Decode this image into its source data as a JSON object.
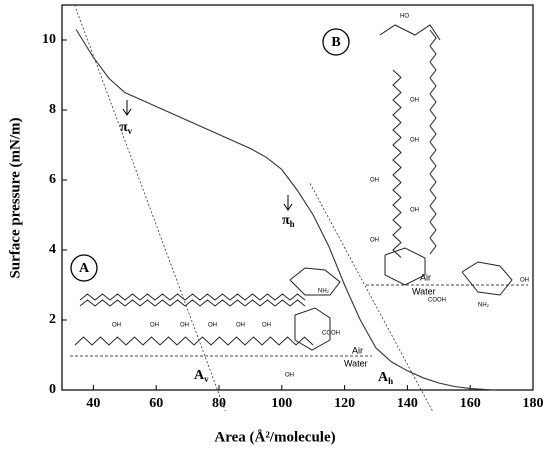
{
  "chart_data": {
    "type": "line",
    "xlabel": "Area (Å²/molecule)",
    "ylabel": "Surface pressure (mN/m)",
    "xlim": [
      30,
      180
    ],
    "ylim": [
      0,
      11
    ],
    "xticks": [
      40,
      60,
      80,
      100,
      120,
      140,
      160,
      180
    ],
    "yticks": [
      0,
      2,
      4,
      6,
      8,
      10
    ],
    "series": [
      {
        "color": "#333333",
        "dash": false,
        "x": [
          34.5,
          40,
          45,
          50,
          55,
          60,
          65,
          70,
          75,
          80,
          85,
          90,
          95,
          100,
          105,
          110,
          115,
          120,
          125,
          130,
          135,
          140,
          145,
          150,
          155,
          160,
          165,
          168
        ],
        "values": [
          10.3,
          9.5,
          8.9,
          8.5,
          8.3,
          8.1,
          7.9,
          7.7,
          7.5,
          7.3,
          7.1,
          6.9,
          6.65,
          6.3,
          5.7,
          5.0,
          4.1,
          3.0,
          2.0,
          1.2,
          0.8,
          0.55,
          0.35,
          0.2,
          0.1,
          0.04,
          0.01,
          0
        ]
      },
      {
        "color": "#333333",
        "dash": true,
        "x": [
          34,
          82
        ],
        "values": [
          11,
          -0.6
        ]
      },
      {
        "color": "#333333",
        "dash": true,
        "x": [
          109,
          148
        ],
        "values": [
          5.9,
          -0.6
        ]
      }
    ],
    "annotations": {
      "pi_v": {
        "main": "π",
        "sub": "v"
      },
      "pi_h": {
        "main": "π",
        "sub": "h"
      },
      "a_v": {
        "main": "A",
        "sub": "v"
      },
      "a_h": {
        "main": "A",
        "sub": "h"
      },
      "panel_a": "A",
      "panel_b": "B",
      "air_a": "Air",
      "water_a": "Water",
      "air_b": "Air",
      "water_b": "Water",
      "oh": "OH",
      "cooh": "COOH",
      "nh2": "NH₂",
      "ho": "HO"
    }
  }
}
